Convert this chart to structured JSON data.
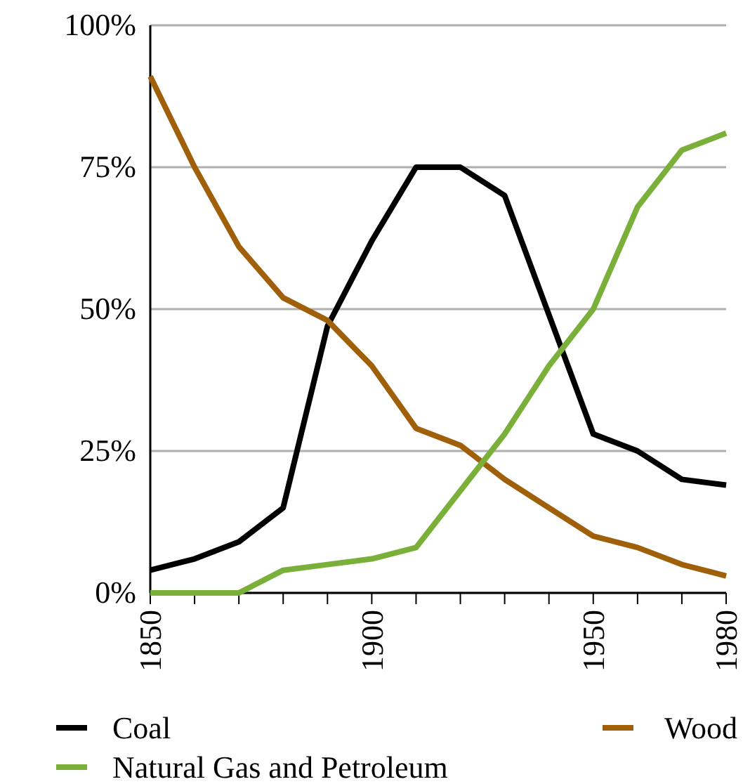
{
  "chart_data": {
    "type": "line",
    "x": [
      1850,
      1860,
      1870,
      1880,
      1890,
      1900,
      1910,
      1920,
      1930,
      1940,
      1950,
      1960,
      1970,
      1980
    ],
    "series": [
      {
        "name": "Coal",
        "color": "#000000",
        "values": [
          4,
          6,
          9,
          15,
          47,
          62,
          75,
          75,
          70,
          49,
          28,
          25,
          20,
          19
        ]
      },
      {
        "name": "Wood",
        "color": "#a0600a",
        "values": [
          91,
          75,
          61,
          52,
          48,
          40,
          29,
          26,
          20,
          15,
          10,
          8,
          5,
          3
        ]
      },
      {
        "name": "Natural Gas and Petroleum",
        "color": "#7ab03a",
        "values": [
          0,
          0,
          0,
          4,
          5,
          6,
          8,
          18,
          28,
          40,
          50,
          68,
          78,
          81
        ]
      }
    ],
    "xlim": [
      1850,
      1980
    ],
    "xticks": [
      1850,
      {
        "value": 1860,
        "label": null
      },
      {
        "value": 1870,
        "label": null
      },
      {
        "value": 1880,
        "label": null
      },
      {
        "value": 1890,
        "label": null
      },
      1900,
      {
        "value": 1910,
        "label": null
      },
      {
        "value": 1920,
        "label": null
      },
      {
        "value": 1930,
        "label": null
      },
      {
        "value": 1940,
        "label": null
      },
      1950,
      {
        "value": 1960,
        "label": null
      },
      {
        "value": 1970,
        "label": null
      },
      1980
    ],
    "ylim": [
      0,
      100
    ],
    "yticks": [
      {
        "value": 0,
        "label": "0%"
      },
      {
        "value": 25,
        "label": "25%"
      },
      {
        "value": 50,
        "label": "50%"
      },
      {
        "value": 75,
        "label": "75%"
      },
      {
        "value": 100,
        "label": "100%"
      }
    ],
    "grid": "y",
    "legend": "bottom",
    "marker": "none",
    "line_style": "solid"
  }
}
